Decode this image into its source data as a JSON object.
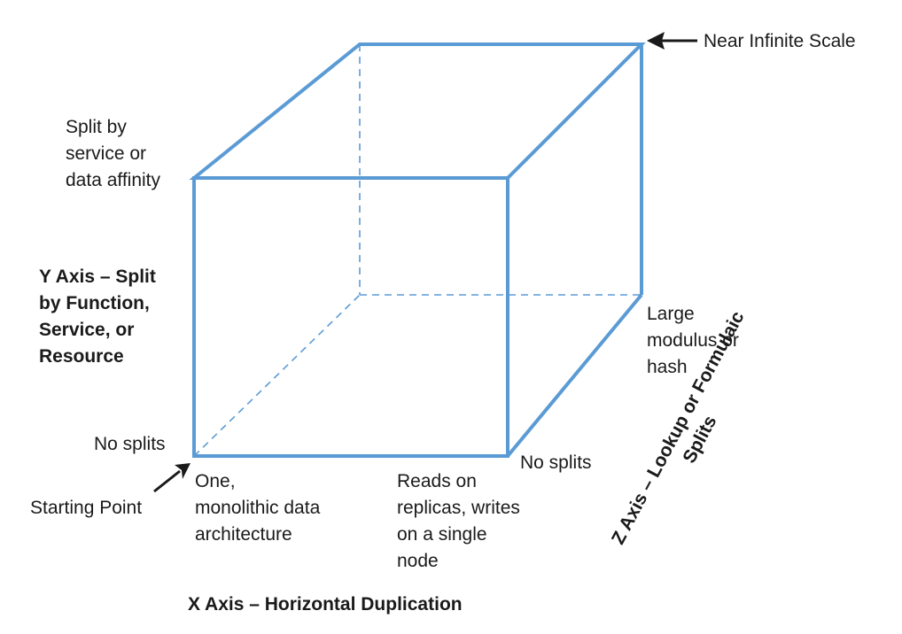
{
  "near_infinite": "Near Infinite Scale",
  "y_top": [
    "Split by",
    "service or",
    "data affinity"
  ],
  "y_axis_title": [
    "Y Axis – Split",
    "by Function,",
    "Service, or",
    "Resource"
  ],
  "no_splits_left": "No splits",
  "starting_point": "Starting Point",
  "x_one": [
    "One,",
    "monolithic data",
    "architecture"
  ],
  "x_reads": [
    "Reads on",
    "replicas, writes",
    "on a single",
    "node"
  ],
  "no_splits_right": "No splits",
  "z_large": [
    "Large",
    "modulus or",
    "hash"
  ],
  "z_axis_title": [
    "Z Axis – Lookup or Formulaic",
    "Splits"
  ],
  "x_axis_title": "X Axis – Horizontal Duplication",
  "colors": {
    "cube_edge": "#5b9bd5",
    "arrow": "#1a1a1a",
    "text": "#1a1a1a"
  }
}
